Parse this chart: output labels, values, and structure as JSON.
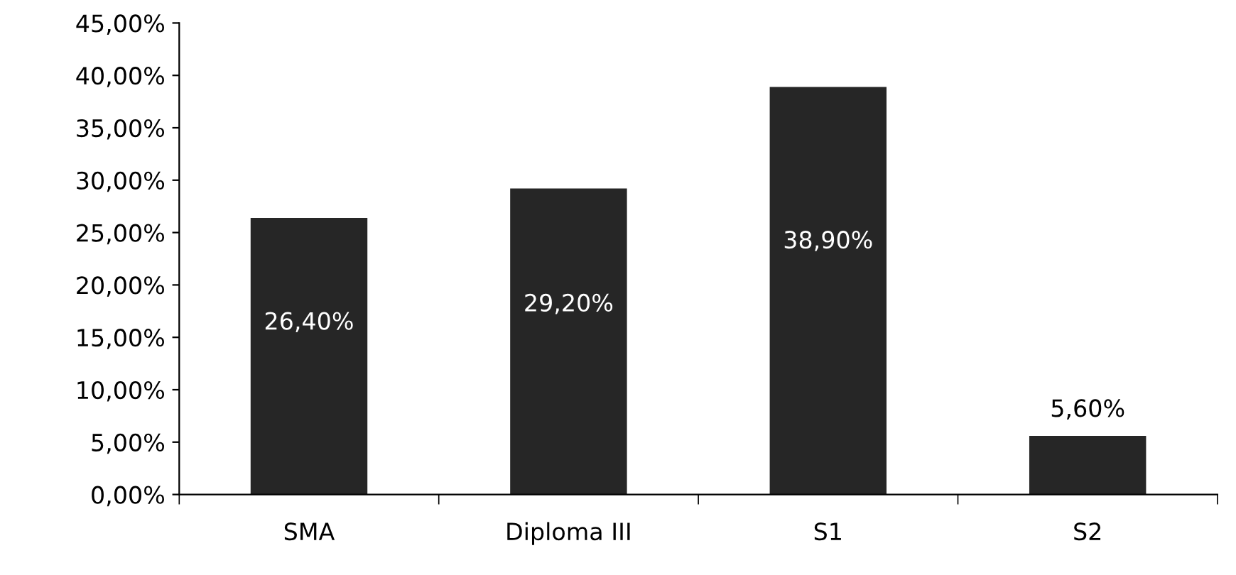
{
  "chart_data": {
    "type": "bar",
    "categories": [
      "SMA",
      "Diploma III",
      "S1",
      "S2"
    ],
    "values": [
      26.4,
      29.2,
      38.9,
      5.6
    ],
    "value_labels": [
      "26,40%",
      "29,20%",
      "38,90%",
      "5,60%"
    ],
    "color": "#262626",
    "ylim": [
      0,
      45
    ],
    "yticks": [
      {
        "value": 0,
        "label": "0,00%"
      },
      {
        "value": 5,
        "label": "5,00%"
      },
      {
        "value": 10,
        "label": "10,00%"
      },
      {
        "value": 15,
        "label": "15,00%"
      },
      {
        "value": 20,
        "label": "20,00%"
      },
      {
        "value": 25,
        "label": "25,00%"
      },
      {
        "value": 30,
        "label": "30,00%"
      },
      {
        "value": 35,
        "label": "35,00%"
      },
      {
        "value": 40,
        "label": "40,00%"
      },
      {
        "value": 45,
        "label": "45,00%"
      }
    ],
    "grid": false,
    "legend": false
  }
}
